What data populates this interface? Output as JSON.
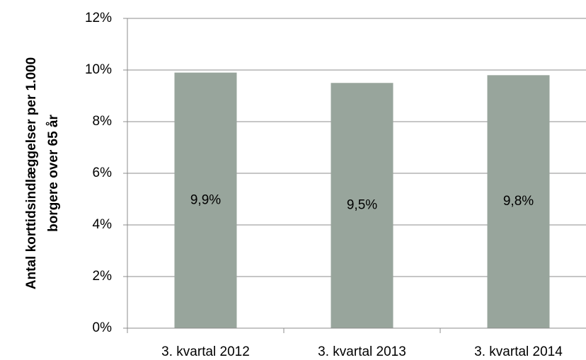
{
  "chart_data": {
    "type": "bar",
    "ylabel": [
      "Antal korttidsindlæggelser per 1.000",
      "borgere over 65 år"
    ],
    "categories": [
      "3. kvartal 2012",
      "3. kvartal 2013",
      "3. kvartal 2014"
    ],
    "values": [
      9.9,
      9.5,
      9.8
    ],
    "value_labels": [
      "9,9%",
      "9,5%",
      "9,8%"
    ],
    "color": "#98a59c",
    "ylim": [
      0,
      12
    ],
    "yticks": [
      {
        "value": 0,
        "label": "0%"
      },
      {
        "value": 2,
        "label": "2%"
      },
      {
        "value": 4,
        "label": "4%"
      },
      {
        "value": 6,
        "label": "6%"
      },
      {
        "value": 8,
        "label": "8%"
      },
      {
        "value": 10,
        "label": "10%"
      },
      {
        "value": 12,
        "label": "12%"
      }
    ],
    "grid": true
  }
}
